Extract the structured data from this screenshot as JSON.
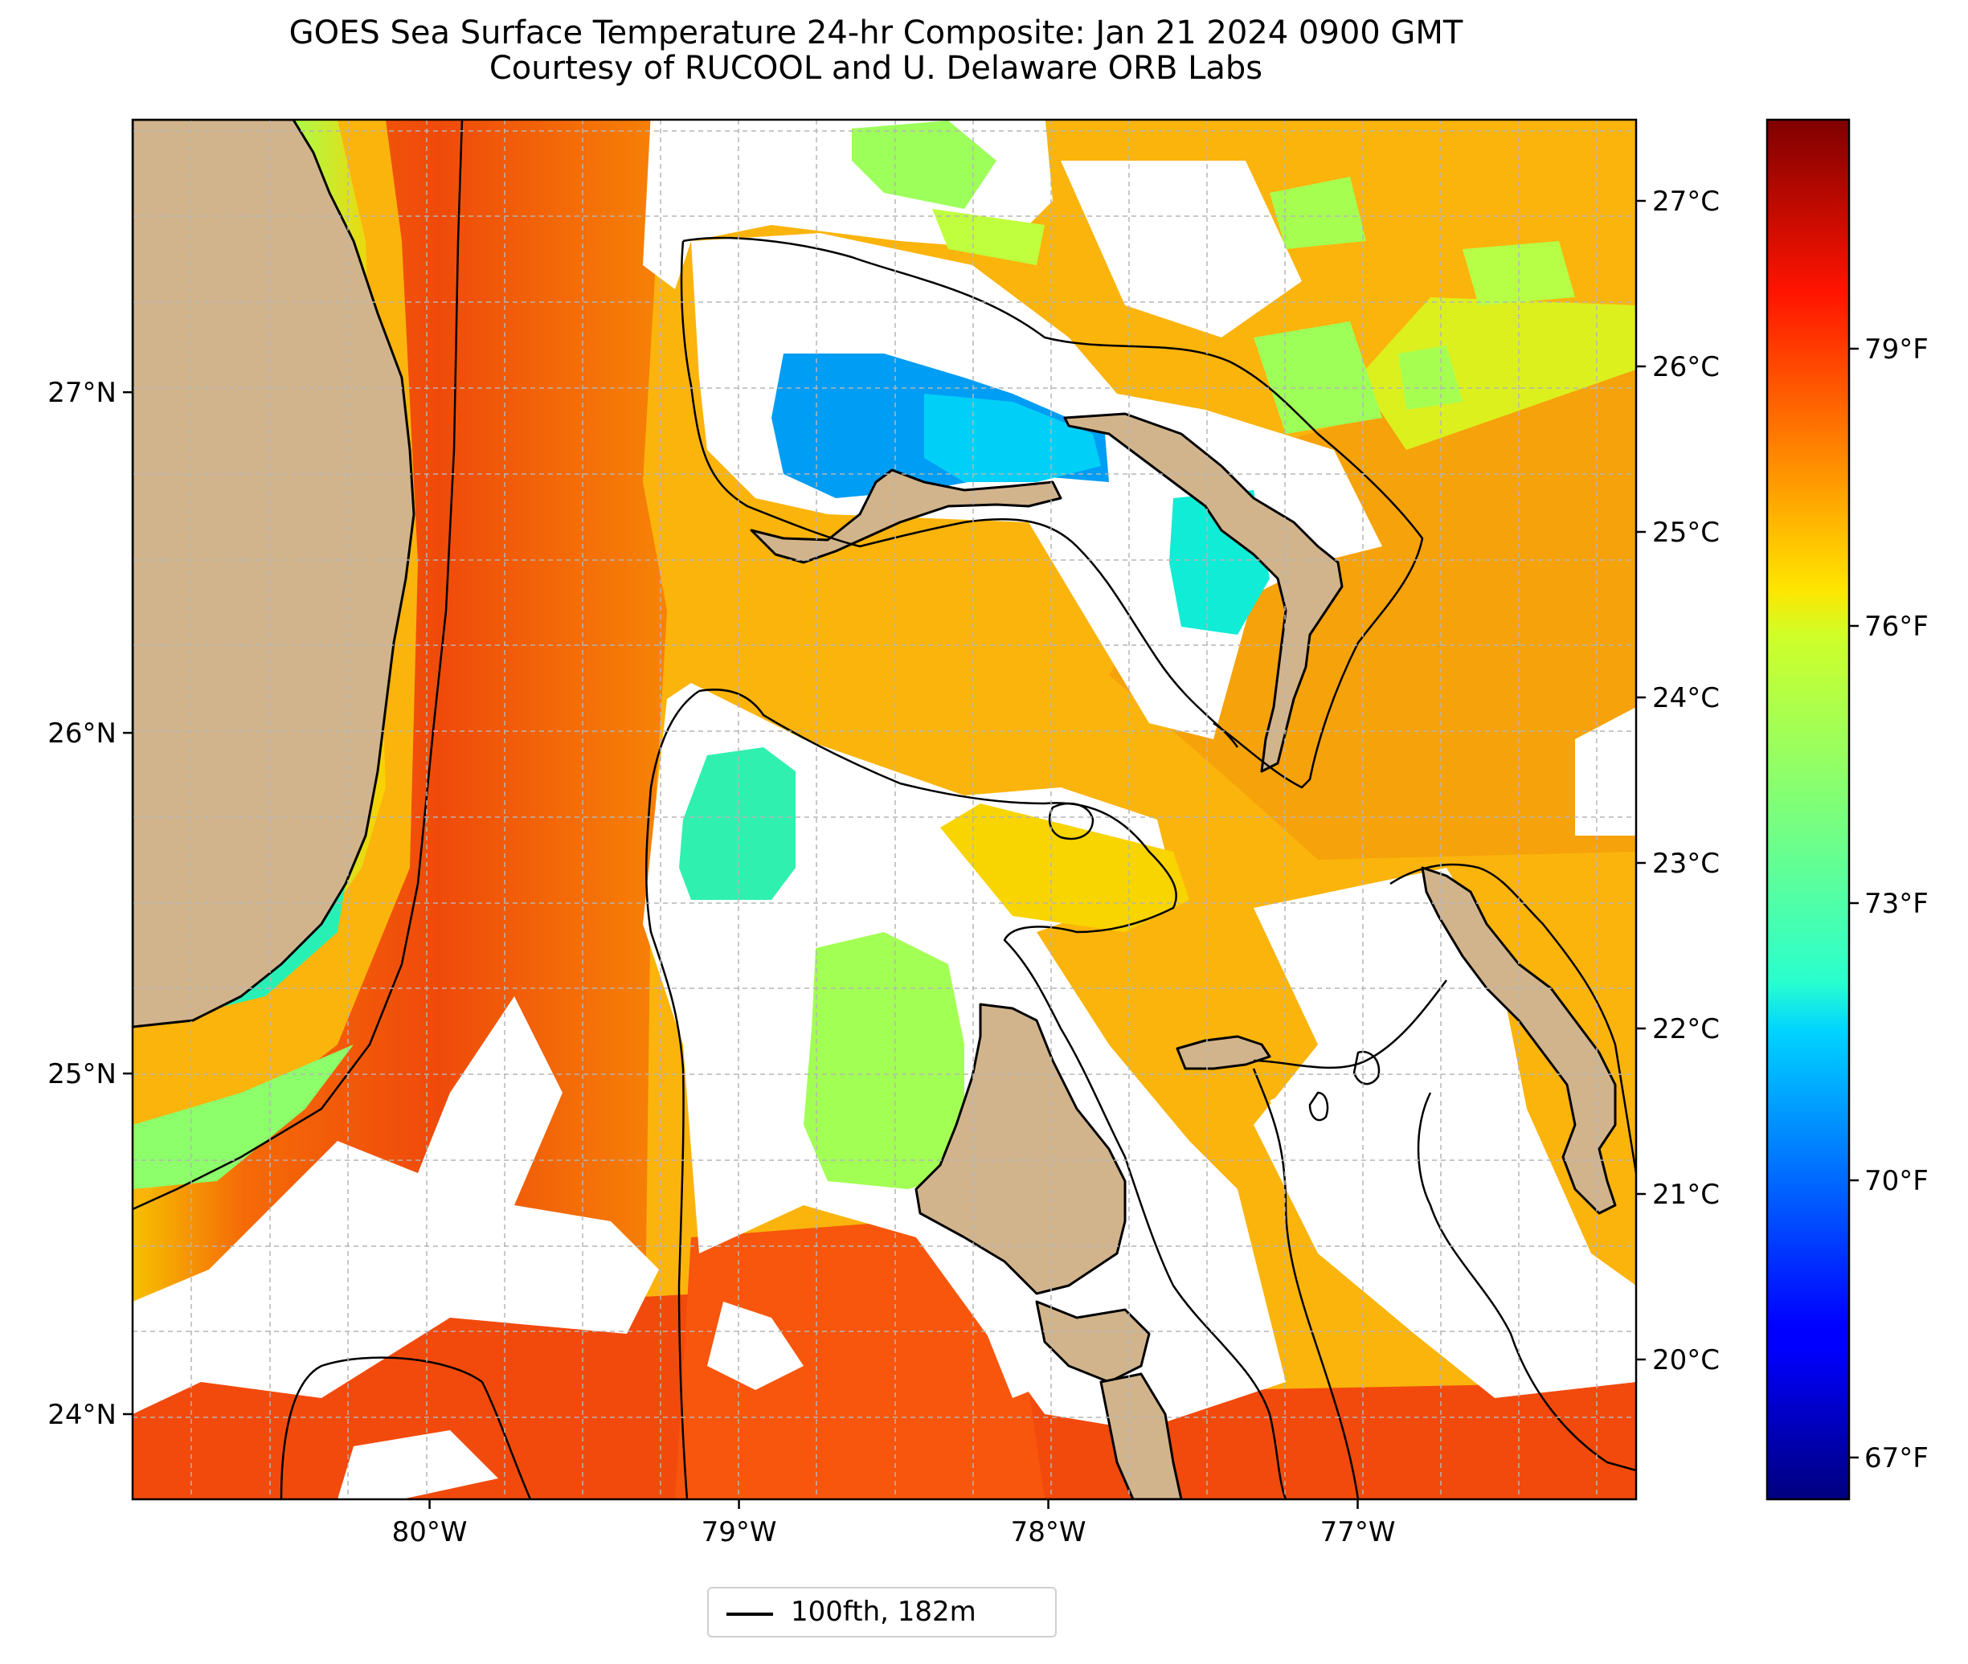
{
  "title_line1": "GOES Sea Surface Temperature 24-hr Composite: Jan 21 2024 0900 GMT",
  "title_line2": "Courtesy of RUCOOL and U. Delaware ORB Labs",
  "map": {
    "lon_ticks": [
      {
        "value": -80,
        "label": "80°W"
      },
      {
        "value": -79,
        "label": "79°W"
      },
      {
        "value": -78,
        "label": "78°W"
      },
      {
        "value": -77,
        "label": "77°W"
      }
    ],
    "lat_ticks": [
      {
        "value": 27,
        "label": "27°N"
      },
      {
        "value": 26,
        "label": "26°N"
      },
      {
        "value": 25,
        "label": "25°N"
      },
      {
        "value": 24,
        "label": "24°N"
      }
    ],
    "lon_range": [
      -80.96,
      -76.1
    ],
    "lat_range": [
      23.75,
      27.8
    ]
  },
  "colorbar": {
    "celsius_ticks": [
      "27°C",
      "26°C",
      "25°C",
      "24°C",
      "23°C",
      "22°C",
      "21°C",
      "20°C"
    ],
    "fahrenheit_ticks": [
      "79°F",
      "76°F",
      "73°F",
      "70°F",
      "67°F"
    ],
    "colormap": "jet"
  },
  "legend": {
    "label": "100fth, 182m"
  },
  "colors": {
    "land": "#d2b48c",
    "gulf_stream": "#f04a0a",
    "shelf_warm": "#fbb40c",
    "cool_water": "#2fe8b0",
    "cold_pool": "#00a2f5",
    "deep_cold": "#00007f",
    "cloud": "#ffffff"
  }
}
